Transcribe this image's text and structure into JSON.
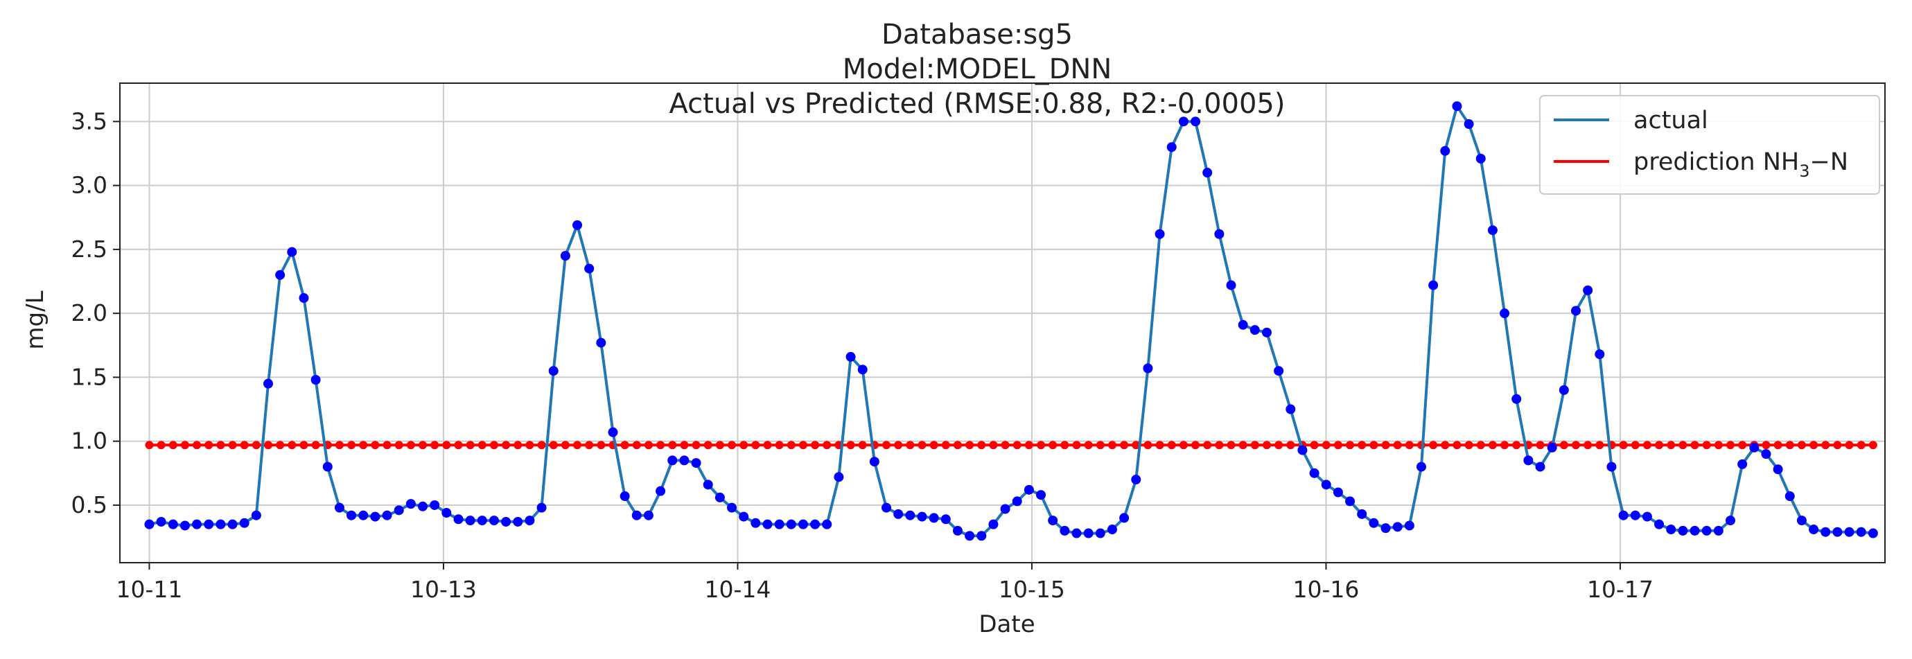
{
  "chart_data": {
    "type": "line",
    "title": [
      "Database:sg5",
      "Model:MODEL_DNN",
      "Actual vs Predicted (RMSE:0.88, R2:-0.0005)"
    ],
    "xlabel": "Date",
    "ylabel": "mg/L",
    "x_ticks": [
      "10-11",
      "10-13",
      "10-14",
      "10-15",
      "10-16",
      "10-17"
    ],
    "y_ticks": [
      "0.5",
      "1.0",
      "1.5",
      "2.0",
      "2.5",
      "3.0",
      "3.5"
    ],
    "ylim": [
      0.05,
      3.8
    ],
    "xlim": [
      -0.05,
      2.95
    ],
    "grid": true,
    "legend_position": "top-right",
    "legend": {
      "actual": "actual",
      "prediction_base": "prediction NH",
      "prediction_sub": "3",
      "prediction_suffix": "−N"
    },
    "series": [
      {
        "name": "actual",
        "color": "#1f77b4",
        "values": [
          0.35,
          0.37,
          0.35,
          0.34,
          0.35,
          0.35,
          0.35,
          0.35,
          0.36,
          0.42,
          1.45,
          2.3,
          2.48,
          2.12,
          1.48,
          0.8,
          0.48,
          0.42,
          0.42,
          0.41,
          0.42,
          0.46,
          0.51,
          0.49,
          0.5,
          0.44,
          0.39,
          0.38,
          0.38,
          0.38,
          0.37,
          0.37,
          0.38,
          0.48,
          1.55,
          2.45,
          2.69,
          2.35,
          1.77,
          1.07,
          0.57,
          0.42,
          0.42,
          0.61,
          0.85,
          0.85,
          0.83,
          0.66,
          0.56,
          0.48,
          0.41,
          0.36,
          0.35,
          0.35,
          0.35,
          0.35,
          0.35,
          0.35,
          0.72,
          1.66,
          1.56,
          0.84,
          0.48,
          0.43,
          0.42,
          0.41,
          0.4,
          0.39,
          0.3,
          0.26,
          0.26,
          0.35,
          0.47,
          0.53,
          0.62,
          0.58,
          0.38,
          0.3,
          0.28,
          0.28,
          0.28,
          0.31,
          0.4,
          0.7,
          1.57,
          2.62,
          3.3,
          3.5,
          3.5,
          3.1,
          2.62,
          2.22,
          1.91,
          1.87,
          1.85,
          1.55,
          1.25,
          0.93,
          0.75,
          0.66,
          0.6,
          0.53,
          0.43,
          0.36,
          0.32,
          0.33,
          0.34,
          0.8,
          2.22,
          3.27,
          3.62,
          3.48,
          3.21,
          2.65,
          2.0,
          1.33,
          0.85,
          0.8,
          0.95,
          1.4,
          2.02,
          2.18,
          1.68,
          0.8,
          0.42,
          0.42,
          0.41,
          0.35,
          0.31,
          0.3,
          0.3,
          0.3,
          0.3,
          0.38,
          0.82,
          0.95,
          0.9,
          0.78,
          0.57,
          0.38,
          0.31,
          0.29,
          0.29,
          0.29,
          0.29,
          0.28
        ]
      },
      {
        "name": "prediction NH3−N",
        "color": "#ff0000",
        "values": [
          0.97
        ]
      }
    ],
    "colors": {
      "actual_points": "#0000ff",
      "prediction": "#ff0000",
      "actual_line": "#1f77b4"
    }
  }
}
